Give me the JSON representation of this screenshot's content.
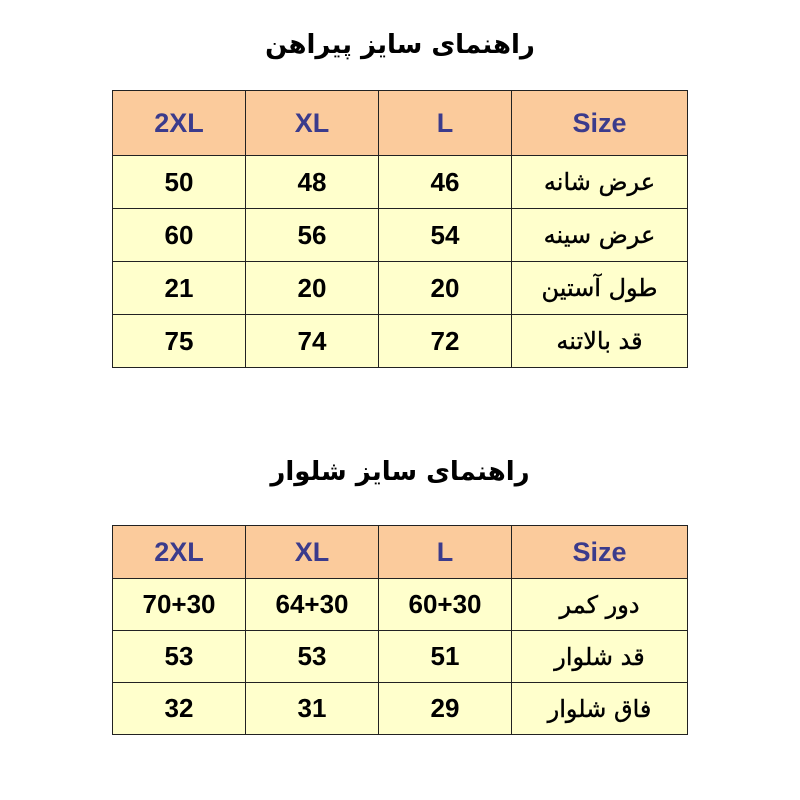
{
  "shirt": {
    "title": "راهنمای سایز پیراهن",
    "headers": [
      "Size",
      "L",
      "XL",
      "2XL"
    ],
    "rows": [
      {
        "label": "عرض شانه",
        "values": [
          "46",
          "48",
          "50"
        ]
      },
      {
        "label": "عرض سینه",
        "values": [
          "54",
          "56",
          "60"
        ]
      },
      {
        "label": "طول آستین",
        "values": [
          "20",
          "20",
          "21"
        ]
      },
      {
        "label": "قد بالاتنه",
        "values": [
          "72",
          "74",
          "75"
        ]
      }
    ]
  },
  "pants": {
    "title": "راهنمای سایز شلوار",
    "headers": [
      "Size",
      "L",
      "XL",
      "2XL"
    ],
    "rows": [
      {
        "label": "دور کمر",
        "values": [
          "60+30",
          "64+30",
          "70+30"
        ]
      },
      {
        "label": "قد شلوار",
        "values": [
          "51",
          "53",
          "53"
        ]
      },
      {
        "label": "فاق شلوار",
        "values": [
          "29",
          "31",
          "32"
        ]
      }
    ]
  },
  "colors": {
    "header_bg": "#FBCB9C",
    "body_bg": "#FFFFCC",
    "header_text": "#3B3B8C"
  }
}
